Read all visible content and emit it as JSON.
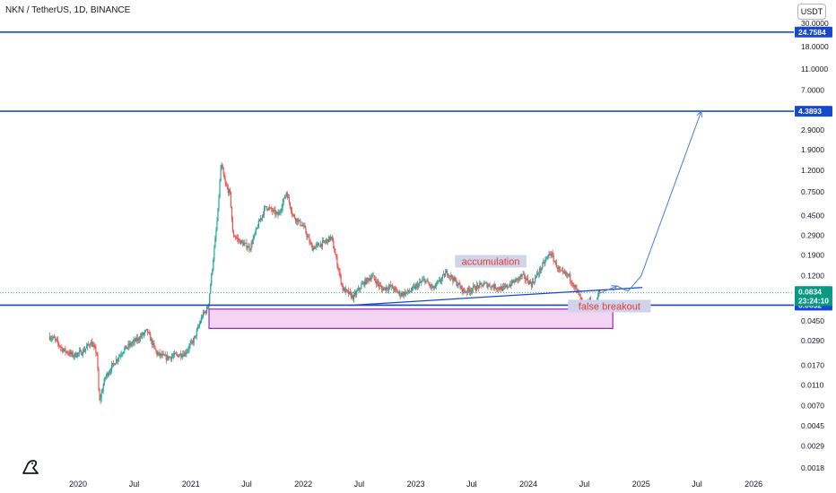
{
  "header": {
    "title": "NKN / TetherUS, 1D, BINANCE",
    "currency_button": "USDT"
  },
  "colors": {
    "up": "#26a69a",
    "down": "#ef5350",
    "level_line": "#1848cc",
    "projection": "#4a7fd6",
    "zone_border": "#9c27b0",
    "zone_fill": "#f3d5f3",
    "anno_bg": "#cfd4ea",
    "anno_text": "#e53935",
    "price_tag": "#089981"
  },
  "chart_data": {
    "type": "candlestick",
    "scale": "log",
    "ylim": [
      0.0018,
      30.0
    ],
    "x_ticks": [
      "2020",
      "Jul",
      "2021",
      "Jul",
      "2022",
      "Jul",
      "2023",
      "Jul",
      "2024",
      "Jul",
      "2025",
      "Jul",
      "2026"
    ],
    "y_ticks": [
      "30.0000",
      "18.0000",
      "11.0000",
      "7.0000",
      "4.3893",
      "2.9000",
      "1.9000",
      "1.2000",
      "0.7500",
      "0.4500",
      "0.2900",
      "0.1900",
      "0.1200",
      "0.0450",
      "0.0290",
      "0.0170",
      "0.0110",
      "0.0070",
      "0.0045",
      "0.0029",
      "0.0018"
    ],
    "y_tick_values": [
      30.0,
      18.0,
      11.0,
      7.0,
      4.3893,
      2.9,
      1.9,
      1.2,
      0.75,
      0.45,
      0.29,
      0.19,
      0.12,
      0.045,
      0.029,
      0.017,
      0.011,
      0.007,
      0.0045,
      0.0029,
      0.0018
    ],
    "price_path": [
      [
        "2019-10-01",
        0.032
      ],
      [
        "2019-10-20",
        0.03
      ],
      [
        "2019-11-15",
        0.024
      ],
      [
        "2019-12-20",
        0.021
      ],
      [
        "2020-01-20",
        0.023
      ],
      [
        "2020-02-15",
        0.028
      ],
      [
        "2020-03-05",
        0.022
      ],
      [
        "2020-03-13",
        0.0075
      ],
      [
        "2020-04-01",
        0.013
      ],
      [
        "2020-05-01",
        0.018
      ],
      [
        "2020-06-01",
        0.024
      ],
      [
        "2020-07-15",
        0.03
      ],
      [
        "2020-08-15",
        0.036
      ],
      [
        "2020-09-15",
        0.022
      ],
      [
        "2020-10-15",
        0.02
      ],
      [
        "2020-11-15",
        0.021
      ],
      [
        "2020-12-15",
        0.022
      ],
      [
        "2021-01-15",
        0.03
      ],
      [
        "2021-02-10",
        0.05
      ],
      [
        "2021-03-01",
        0.06
      ],
      [
        "2021-03-20",
        0.2
      ],
      [
        "2021-04-01",
        0.45
      ],
      [
        "2021-04-12",
        1.4
      ],
      [
        "2021-04-25",
        0.9
      ],
      [
        "2021-05-12",
        0.7
      ],
      [
        "2021-05-20",
        0.3
      ],
      [
        "2021-06-15",
        0.25
      ],
      [
        "2021-07-15",
        0.22
      ],
      [
        "2021-08-15",
        0.4
      ],
      [
        "2021-09-05",
        0.55
      ],
      [
        "2021-10-15",
        0.45
      ],
      [
        "2021-11-10",
        0.75
      ],
      [
        "2021-12-01",
        0.45
      ],
      [
        "2022-01-05",
        0.35
      ],
      [
        "2022-02-01",
        0.22
      ],
      [
        "2022-03-15",
        0.25
      ],
      [
        "2022-04-05",
        0.28
      ],
      [
        "2022-05-12",
        0.09
      ],
      [
        "2022-06-15",
        0.075
      ],
      [
        "2022-07-15",
        0.1
      ],
      [
        "2022-08-15",
        0.12
      ],
      [
        "2022-09-15",
        0.09
      ],
      [
        "2022-10-15",
        0.095
      ],
      [
        "2022-11-15",
        0.08
      ],
      [
        "2022-12-15",
        0.085
      ],
      [
        "2023-02-01",
        0.11
      ],
      [
        "2023-03-01",
        0.09
      ],
      [
        "2023-04-15",
        0.13
      ],
      [
        "2023-06-10",
        0.085
      ],
      [
        "2023-08-15",
        0.1
      ],
      [
        "2023-10-15",
        0.09
      ],
      [
        "2023-12-15",
        0.12
      ],
      [
        "2024-01-15",
        0.1
      ],
      [
        "2024-03-15",
        0.2
      ],
      [
        "2024-04-15",
        0.13
      ],
      [
        "2024-05-15",
        0.12
      ],
      [
        "2024-06-15",
        0.08
      ],
      [
        "2024-07-05",
        0.06
      ],
      [
        "2024-07-20",
        0.07
      ],
      [
        "2024-08-05",
        0.058
      ],
      [
        "2024-08-20",
        0.0834
      ]
    ],
    "horizontal_levels": [
      {
        "label": "24.7584",
        "value": 24.7584
      },
      {
        "label": "4.3893",
        "value": 4.3893
      },
      {
        "label": "0.0632",
        "value": 0.0632
      }
    ],
    "current_price": {
      "label": "0.0834",
      "value": 0.0834,
      "countdown": "23:24:10"
    },
    "annotations": [
      {
        "text": "accumulation",
        "date": "2023-09-01",
        "value": 0.165
      },
      {
        "text": "false breakout",
        "date": "2024-09-20",
        "value": 0.062
      }
    ],
    "zone": {
      "date_start": "2021-03-01",
      "date_end": "2024-10-01",
      "high": 0.058,
      "low": 0.038
    },
    "trendline": {
      "start": [
        "2022-06-01",
        0.063
      ],
      "end": [
        "2025-01-05",
        0.093
      ]
    },
    "projection_path": [
      [
        "2024-08-20",
        0.082
      ],
      [
        "2024-10-15",
        0.096
      ],
      [
        "2024-11-10",
        0.088
      ],
      [
        "2024-11-20",
        0.086
      ],
      [
        "2025-01-01",
        0.12
      ],
      [
        "2025-07-15",
        4.3893
      ]
    ]
  }
}
